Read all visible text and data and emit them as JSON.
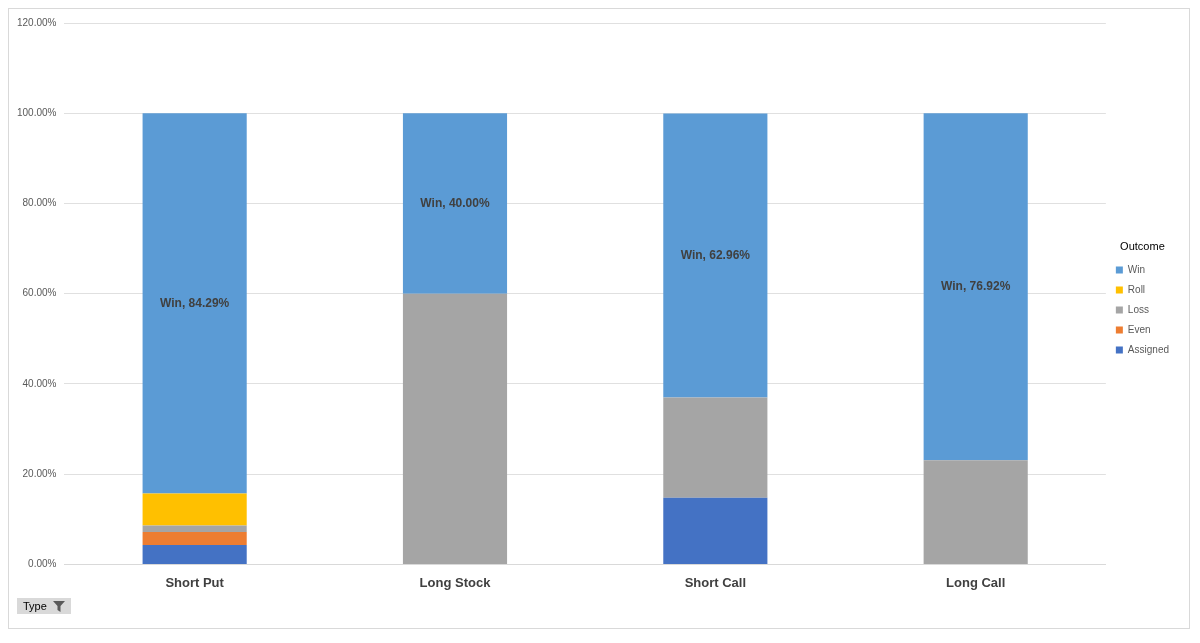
{
  "chart_data": {
    "type": "bar",
    "stacked": true,
    "categories": [
      "Short Put",
      "Long Stock",
      "Short Call",
      "Long Call"
    ],
    "series": [
      {
        "name": "Assigned",
        "color": "#4472c4",
        "values": [
          4.3,
          0,
          14.8,
          0
        ]
      },
      {
        "name": "Even",
        "color": "#ed7d31",
        "values": [
          2.9,
          0,
          0,
          0
        ]
      },
      {
        "name": "Loss",
        "color": "#a5a5a5",
        "values": [
          1.4,
          60,
          22.2,
          23.1
        ]
      },
      {
        "name": "Roll",
        "color": "#ffc000",
        "values": [
          7.1,
          0,
          0,
          0
        ]
      },
      {
        "name": "Win",
        "color": "#5b9bd5",
        "values": [
          84.29,
          40,
          62.96,
          76.92
        ],
        "value_labels": [
          "Win, 84.29%",
          "Win, 40.00%",
          "Win, 62.96%",
          "Win, 76.92%"
        ]
      }
    ],
    "ylim": [
      0,
      120
    ],
    "yticks": [
      {
        "value": 0,
        "label": "0.00%"
      },
      {
        "value": 20,
        "label": "20.00%"
      },
      {
        "value": 40,
        "label": "40.00%"
      },
      {
        "value": 60,
        "label": "60.00%"
      },
      {
        "value": 80,
        "label": "80.00%"
      },
      {
        "value": 100,
        "label": "100.00%"
      },
      {
        "value": 120,
        "label": "120.00%"
      }
    ],
    "grid": "y",
    "legend": "right",
    "legend_title": "Outcome",
    "annotations": [
      "Type"
    ]
  }
}
